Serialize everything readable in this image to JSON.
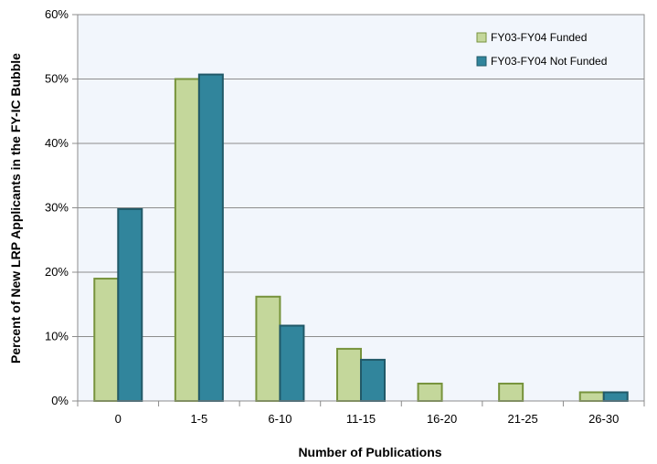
{
  "chart_data": {
    "type": "bar",
    "title": "",
    "xlabel": "Number of Publications",
    "ylabel": "Percent of New LRP Applicants in the FY-IC Bubble",
    "categories": [
      "0",
      "1-5",
      "6-10",
      "11-15",
      "16-20",
      "21-25",
      "26-30"
    ],
    "series": [
      {
        "name": "FY03-FY04 Funded",
        "values": [
          19,
          50,
          16.2,
          8.1,
          2.7,
          2.7,
          1.35
        ],
        "color": "#c4d79b",
        "stroke": "#77933c"
      },
      {
        "name": "FY03-FY04 Not Funded",
        "values": [
          29.8,
          50.7,
          11.7,
          6.4,
          0,
          0,
          1.35
        ],
        "color": "#31859c",
        "stroke": "#215968"
      }
    ],
    "ylim": [
      0,
      60
    ],
    "yticks": [
      0,
      10,
      20,
      30,
      40,
      50,
      60
    ],
    "ytick_labels": [
      "0%",
      "10%",
      "20%",
      "30%",
      "40%",
      "50%",
      "60%"
    ],
    "grid": true,
    "legend_position": "top-right",
    "plot_background": "#f2f6fc"
  }
}
